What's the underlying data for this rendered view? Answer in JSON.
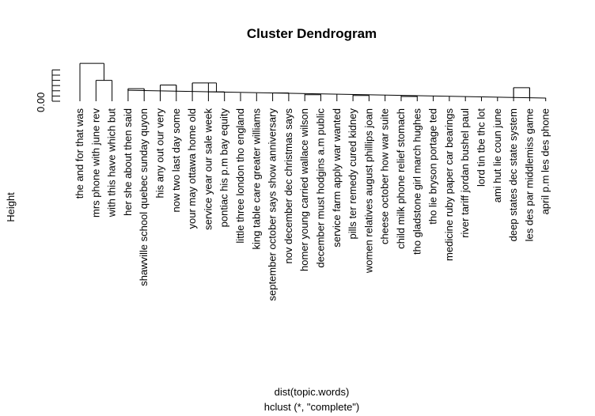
{
  "chart_data": {
    "type": "dendrogram",
    "title": "Cluster Dendrogram",
    "ylabel": "Height",
    "xlabel": "dist(topic.words)",
    "sublabel": "hclust (*, \"complete\")",
    "y_tick_labels": [
      "0.00"
    ],
    "ylim": [
      0,
      1.4
    ],
    "leaves": [
      "the and for that was",
      "mrs phone with june rev",
      "with this have which but",
      "her she about then said",
      "shawville school quebec sunday quyon",
      "his any out our very",
      "now two last day some",
      "your may ottawa home old",
      "service year our sale week",
      "pontiac his p.m bay equity",
      "little three london tho england",
      "king table care greater williams",
      "september october says show anniversary",
      "nov december dec christmas says",
      "homer young carried wallace wilson",
      "december must hodgins a.m public",
      "service farm apply war wanted",
      "pills ter remedy cured kidney",
      "women relatives august phillips joan",
      "cheese october how war suite",
      "child milk phone relief stomach",
      "tho gladstone girl march hughes",
      "tho lie bryson portage ted",
      "medicine ruby paper car bearings",
      "river tariff jordan bushel paul",
      "lord tin tbe thc lot",
      "ami hut lie coun june",
      "deep states dec state system",
      "les des par middlemiss game",
      "april p.m les des phone"
    ],
    "merges": [
      [
        0.18,
        20,
        21
      ],
      [
        0.22,
        17,
        18
      ],
      [
        0.25,
        14,
        15
      ],
      [
        0.32,
        12,
        13
      ],
      [
        0.36,
        8,
        9
      ],
      [
        0.48,
        3,
        4
      ],
      [
        0.52,
        27,
        28
      ],
      [
        0.62,
        5,
        6
      ],
      [
        0.7,
        7,
        8
      ],
      [
        0.8,
        1,
        2
      ],
      [
        1.45,
        0,
        1
      ]
    ]
  }
}
